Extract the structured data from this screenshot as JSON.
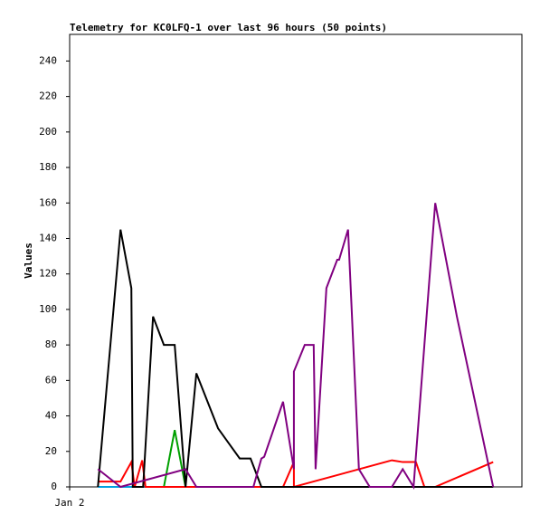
{
  "chart_data": {
    "type": "line",
    "title": "Telemetry for KC0LFQ-1 over last 96 hours (50 points)",
    "y_label": "Values",
    "xlim": [
      0,
      96
    ],
    "xticks": [
      {
        "value": 0,
        "label": "Jan 2"
      }
    ],
    "ylim": [
      0,
      255
    ],
    "yticks": [
      0,
      20,
      40,
      60,
      80,
      100,
      120,
      140,
      160,
      180,
      200,
      220,
      240
    ],
    "grid": false,
    "series": [
      {
        "color": "#00a0e0",
        "x": [
          6.0,
          10.2,
          40.7
        ],
        "values": [
          0,
          0,
          0
        ]
      },
      {
        "color": "#00a000",
        "x": [
          20.0,
          22.3,
          24.6
        ],
        "values": [
          0,
          32,
          0
        ]
      },
      {
        "color": "#ff0000",
        "x": [
          6.0,
          10.8,
          13.1,
          13.8,
          15.4,
          16.1,
          45.3,
          47.6,
          47.6,
          68.4,
          70.7,
          73.5,
          75.3,
          77.6,
          89.9
        ],
        "values": [
          3,
          3,
          14,
          0,
          15,
          0,
          0,
          14,
          0,
          15,
          14,
          14,
          0,
          0,
          14
        ]
      },
      {
        "color": "#000000",
        "x": [
          6.0,
          10.8,
          13.1,
          13.4,
          15.6,
          17.7,
          20.0,
          22.3,
          24.6,
          26.9,
          31.5,
          36.1,
          38.4,
          40.7,
          89.9
        ],
        "values": [
          0,
          145,
          112,
          0,
          0,
          96,
          80,
          80,
          0,
          64,
          33,
          16,
          16,
          0,
          0
        ]
      },
      {
        "color": "#800080",
        "x": [
          6.0,
          10.8,
          24.6,
          26.9,
          39.0,
          40.7,
          41.3,
          45.3,
          47.6,
          47.6,
          49.9,
          51.8,
          52.2,
          54.5,
          56.8,
          57.2,
          59.1,
          61.4,
          63.7,
          68.4,
          70.7,
          73.0,
          77.6,
          82.2,
          89.9
        ],
        "values": [
          10,
          0,
          10,
          0,
          0,
          16,
          17,
          48,
          10,
          65,
          80,
          80,
          10,
          112,
          128,
          128,
          145,
          10,
          0,
          0,
          10,
          0,
          160,
          96,
          0
        ]
      }
    ]
  }
}
